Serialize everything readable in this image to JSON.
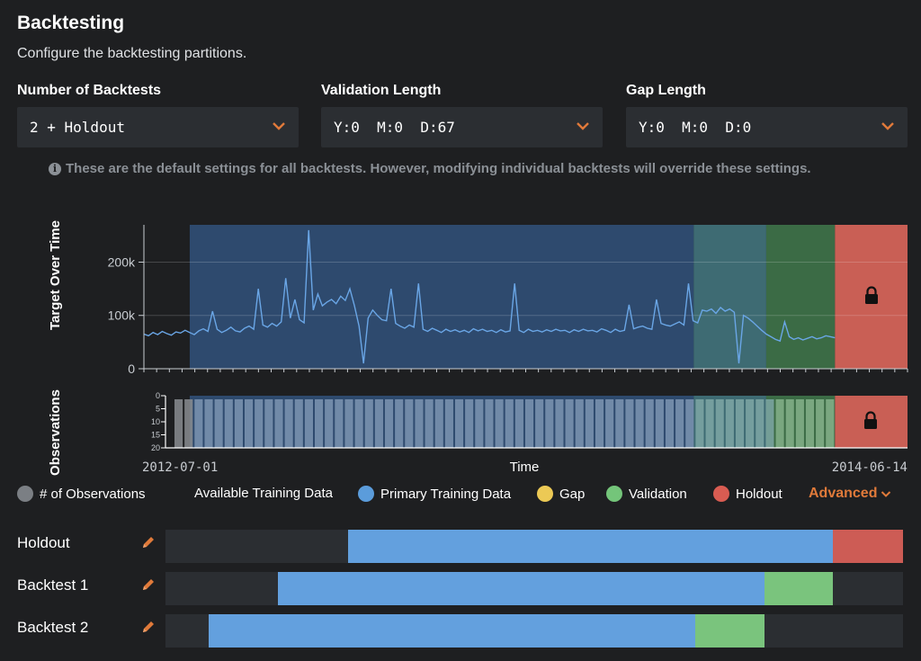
{
  "header": {
    "title": "Backtesting",
    "subtitle": "Configure the backtesting partitions."
  },
  "fields": [
    {
      "label": "Number of Backtests",
      "value": "2 + Holdout"
    },
    {
      "label": "Validation Length",
      "value": "Y:0  M:0  D:67"
    },
    {
      "label": "Gap Length",
      "value": "Y:0  M:0  D:0"
    }
  ],
  "note": "These are the default settings for all backtests. However, modifying individual backtests will override these settings.",
  "chart_data": {
    "type": "line",
    "ylabel": "Target Over Time",
    "obs_ylabel": "Observations",
    "xlabel": "Time",
    "x_start": "2012-07-01",
    "x_end": "2014-06-14",
    "yticks": [
      "200k",
      "100k",
      "0"
    ],
    "yticks_values": [
      200000,
      100000,
      0
    ],
    "obs_yticks": [
      "0",
      "5",
      "10",
      "15",
      "20"
    ],
    "ylim": [
      0,
      270000
    ],
    "regions": [
      {
        "name": "Available Training Data",
        "from": 0.0,
        "to": 0.06,
        "color": "#1e1f21"
      },
      {
        "name": "Primary Training Data",
        "from": 0.06,
        "to": 0.72,
        "color": "#2e4a6e"
      },
      {
        "name": "Gap",
        "from": 0.72,
        "to": 0.815,
        "color": "#3e6b73"
      },
      {
        "name": "Validation",
        "from": 0.815,
        "to": 0.905,
        "color": "#3b6b45"
      },
      {
        "name": "Holdout",
        "from": 0.905,
        "to": 1.0,
        "color": "#c95f55"
      }
    ],
    "series": [
      {
        "values": [
          65000,
          62000,
          68000,
          64000,
          70000,
          66000,
          63000,
          69000,
          67000,
          72000,
          68000,
          64000,
          71000,
          75000,
          70000,
          108000,
          74000,
          68000,
          72000,
          78000,
          71000,
          69000,
          76000,
          80000,
          74000,
          150000,
          82000,
          78000,
          85000,
          80000,
          88000,
          170000,
          95000,
          130000,
          92000,
          86000,
          260000,
          110000,
          140000,
          118000,
          125000,
          130000,
          122000,
          136000,
          128000,
          150000,
          118000,
          80000,
          10000,
          95000,
          110000,
          100000,
          92000,
          90000,
          150000,
          85000,
          80000,
          76000,
          82000,
          78000,
          160000,
          74000,
          70000,
          76000,
          72000,
          68000,
          74000,
          70000,
          73000,
          69000,
          72000,
          68000,
          75000,
          71000,
          74000,
          70000,
          72000,
          68000,
          73000,
          69000,
          71000,
          160000,
          72000,
          68000,
          74000,
          70000,
          72000,
          69000,
          73000,
          70000,
          74000,
          71000,
          72000,
          68000,
          73000,
          70000,
          74000,
          71000,
          72000,
          69000,
          75000,
          72000,
          68000,
          74000,
          70000,
          72000,
          120000,
          75000,
          78000,
          80000,
          76000,
          74000,
          130000,
          85000,
          82000,
          80000,
          84000,
          88000,
          82000,
          160000,
          90000,
          86000,
          110000,
          108000,
          112000,
          104000,
          115000,
          108000,
          112000,
          106000,
          10000,
          100000,
          95000,
          88000,
          80000,
          72000,
          65000,
          60000,
          55000,
          52000,
          88000,
          60000,
          55000,
          58000,
          54000,
          57000,
          60000,
          56000,
          58000,
          62000,
          60000,
          58000
        ]
      }
    ],
    "observations": {
      "count": 66,
      "typical": 20
    }
  },
  "legend": [
    {
      "label": "# of Observations",
      "color": "#7b7f84"
    },
    {
      "label": "Available Training Data",
      "color": ""
    },
    {
      "label": "Primary Training Data",
      "color": "#5b9cdb"
    },
    {
      "label": "Gap",
      "color": "#ecc955"
    },
    {
      "label": "Validation",
      "color": "#74c57a"
    },
    {
      "label": "Holdout",
      "color": "#d95c52"
    }
  ],
  "advanced_label": "Advanced",
  "backtests": [
    {
      "name": "Holdout",
      "segments": [
        {
          "from": 0.248,
          "to": 0.905,
          "color": "#63a0de"
        },
        {
          "from": 0.905,
          "to": 1.0,
          "color": "#cd5c55"
        }
      ]
    },
    {
      "name": "Backtest 1",
      "segments": [
        {
          "from": 0.152,
          "to": 0.812,
          "color": "#63a0de"
        },
        {
          "from": 0.812,
          "to": 0.905,
          "color": "#7ac47d"
        }
      ]
    },
    {
      "name": "Backtest 2",
      "segments": [
        {
          "from": 0.058,
          "to": 0.718,
          "color": "#63a0de"
        },
        {
          "from": 0.718,
          "to": 0.812,
          "color": "#7ac47d"
        }
      ]
    }
  ],
  "colors": {
    "accent": "#e07a3a",
    "background": "#1e1f21",
    "panel": "#2b2e32"
  },
  "icons": {
    "lock": "lock-icon",
    "pencil": "pencil-icon",
    "chevron": "chevron-down-icon",
    "info": "info-icon"
  }
}
